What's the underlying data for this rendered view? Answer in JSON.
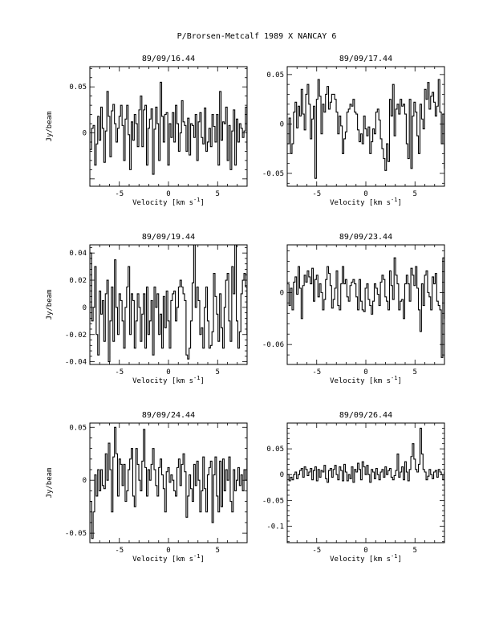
{
  "page_title": "P/Brorsen-Metcalf 1989 X   NANCAY      6",
  "chart_data": [
    {
      "type": "line",
      "title": "89/09/16.44",
      "xlabel": "Velocity [km s",
      "xlabel_sup": "-1",
      "xlabel_close": "]",
      "ylabel": "Jy/beam",
      "xlim": [
        -8,
        8
      ],
      "ylim": [
        -0.058,
        0.072
      ],
      "xticks": [
        -5,
        0,
        5
      ],
      "yticks": [
        0,
        0.05
      ],
      "ytick_labels": [
        "0",
        "0.05"
      ],
      "series": [
        {
          "x_start": -7.9,
          "x_step": 0.155,
          "values": [
            -0.018,
            0.005,
            0.008,
            -0.035,
            -0.012,
            0.018,
            -0.008,
            0.028,
            0.005,
            -0.032,
            0.002,
            0.045,
            0.018,
            -0.026,
            0.024,
            0.031,
            0.01,
            -0.01,
            0.005,
            0.018,
            0.03,
            0.008,
            -0.03,
            0.015,
            0.03,
            -0.002,
            -0.04,
            0.012,
            -0.008,
            0.02,
            0.01,
            -0.015,
            0.025,
            0.04,
            -0.015,
            0.025,
            0.03,
            -0.035,
            0.005,
            0.015,
            0.026,
            -0.045,
            0.004,
            0.028,
            0.01,
            -0.03,
            0.055,
            0.018,
            -0.01,
            0.02,
            0.022,
            -0.035,
            0.01,
            -0.005,
            0.022,
            -0.01,
            0.03,
            0.01,
            -0.02,
            0.0,
            0.035,
            0.012,
            0.008,
            -0.02,
            0.016,
            -0.024,
            0.01,
            0.008,
            -0.005,
            0.02,
            -0.03,
            0.012,
            0.022,
            -0.005,
            -0.012,
            0.027,
            -0.02,
            -0.01,
            0.005,
            -0.015,
            0.02,
            0.007,
            -0.01,
            0.02,
            -0.035,
            0.045,
            -0.008,
            0.012,
            0.01,
            0.028,
            -0.03,
            0.008,
            -0.04,
            0.002,
            0.025,
            -0.035,
            0.015,
            -0.01,
            0.01,
            0.005,
            -0.005,
            0.002,
            0.028,
            -0.018
          ]
        }
      ]
    },
    {
      "type": "line",
      "title": "89/09/17.44",
      "xlabel": "Velocity [km s",
      "xlabel_sup": "-1",
      "xlabel_close": "]",
      "ylabel": "",
      "xlim": [
        -8,
        8
      ],
      "ylim": [
        -0.063,
        0.058
      ],
      "xticks": [
        -5,
        0,
        5
      ],
      "yticks": [
        -0.05,
        0,
        0.05
      ],
      "ytick_labels": [
        "-0.05",
        "0",
        "0.05"
      ],
      "series": [
        {
          "x_start": -7.9,
          "x_step": 0.155,
          "values": [
            -0.02,
            0.006,
            -0.03,
            -0.02,
            0.012,
            0.022,
            -0.004,
            0.018,
            0.008,
            0.035,
            0.01,
            -0.006,
            0.03,
            0.04,
            0.02,
            -0.015,
            0.005,
            0.018,
            -0.055,
            0.025,
            0.045,
            0.028,
            -0.01,
            0.02,
            0.012,
            0.03,
            0.038,
            0.015,
            0.022,
            0.03,
            0.03,
            0.025,
            0.012,
            -0.01,
            0.008,
            -0.002,
            -0.03,
            -0.015,
            -0.008,
            0.012,
            0.015,
            0.02,
            0.018,
            0.025,
            0.012,
            0.01,
            -0.006,
            -0.018,
            -0.01,
            -0.02,
            0.008,
            -0.005,
            -0.012,
            -0.003,
            -0.03,
            -0.018,
            -0.005,
            -0.01,
            0.012,
            0.015,
            0.004,
            -0.015,
            -0.025,
            -0.035,
            -0.047,
            -0.02,
            -0.038,
            0.025,
            0.008,
            0.04,
            -0.012,
            0.015,
            0.02,
            0.01,
            0.025,
            0.018,
            0.02,
            0.01,
            -0.02,
            -0.035,
            0.025,
            -0.045,
            0.008,
            0.022,
            0.012,
            -0.012,
            -0.03,
            0.02,
            0.005,
            -0.005,
            0.035,
            0.025,
            0.042,
            0.015,
            0.028,
            0.032,
            0.022,
            0.008,
            0.018,
            0.045,
            0.012,
            -0.02,
            0.01,
            -0.045
          ]
        }
      ]
    },
    {
      "type": "line",
      "title": "89/09/19.44",
      "xlabel": "Velocity [km s",
      "xlabel_sup": "-1",
      "xlabel_close": "]",
      "ylabel": "Jy/beam",
      "xlim": [
        -8,
        8
      ],
      "ylim": [
        -0.042,
        0.046
      ],
      "xticks": [
        -5,
        0,
        5
      ],
      "yticks": [
        -0.04,
        -0.02,
        0,
        0.02,
        0.04
      ],
      "ytick_labels": [
        "-0.04",
        "-0.02",
        "0",
        "0.02",
        "0.04"
      ],
      "series": [
        {
          "x_start": -7.9,
          "x_step": 0.155,
          "values": [
            0.04,
            -0.01,
            0.0,
            0.03,
            -0.02,
            -0.035,
            0.012,
            -0.005,
            0.005,
            -0.025,
            0.01,
            0.02,
            -0.04,
            -0.01,
            0.015,
            -0.025,
            0.035,
            0.0,
            -0.02,
            0.01,
            0.005,
            -0.01,
            -0.03,
            0.0,
            0.015,
            0.03,
            -0.02,
            0.01,
            0.005,
            -0.03,
            -0.01,
            0.01,
            0.0,
            -0.025,
            -0.005,
            0.01,
            -0.03,
            0.015,
            -0.02,
            -0.01,
            0.005,
            -0.035,
            0.015,
            0.0,
            0.01,
            -0.02,
            -0.005,
            -0.03,
            0.008,
            -0.015,
            0.012,
            -0.01,
            -0.03,
            0.005,
            0.01,
            0.012,
            -0.01,
            0.0,
            0.015,
            0.02,
            0.015,
            0.01,
            0.005,
            -0.035,
            -0.038,
            -0.03,
            -0.01,
            0.018,
            0.046,
            0.0,
            0.015,
            0.005,
            -0.02,
            -0.015,
            -0.03,
            0.0,
            0.015,
            -0.01,
            -0.03,
            -0.028,
            -0.018,
            0.025,
            0.008,
            -0.005,
            -0.025,
            0.01,
            -0.015,
            -0.03,
            0.0,
            0.02,
            0.025,
            -0.01,
            -0.025,
            0.03,
            0.01,
            0.047,
            -0.01,
            -0.03,
            -0.018,
            0.01,
            0.02,
            0.025,
            0.015,
            -0.02
          ]
        }
      ]
    },
    {
      "type": "line",
      "title": "89/09/23.44",
      "xlabel": "Velocity [km s",
      "xlabel_sup": "-1",
      "xlabel_close": "]",
      "ylabel": "",
      "xlim": [
        -8,
        8
      ],
      "ylim": [
        -0.083,
        0.055
      ],
      "xticks": [
        -5,
        0,
        5
      ],
      "yticks": [
        -0.06,
        0
      ],
      "ytick_labels": [
        "-0.06",
        "0"
      ],
      "series": [
        {
          "x_start": -7.9,
          "x_step": 0.155,
          "values": [
            0.01,
            -0.015,
            0.005,
            -0.02,
            0.012,
            0.018,
            -0.002,
            0.03,
            0.005,
            -0.03,
            0.008,
            0.02,
            0.012,
            0.025,
            0.018,
            0.01,
            0.028,
            -0.01,
            0.015,
            0.02,
            -0.005,
            0.01,
            0.0,
            -0.02,
            -0.008,
            0.015,
            0.03,
            0.022,
            0.008,
            -0.018,
            -0.008,
            0.005,
            0.025,
            -0.015,
            -0.02,
            0.01,
            0.03,
            0.01,
            0.015,
            -0.005,
            -0.01,
            0.008,
            0.012,
            0.015,
            0.01,
            -0.005,
            -0.02,
            0.015,
            -0.01,
            -0.02,
            -0.022,
            0.005,
            0.01,
            -0.008,
            -0.015,
            -0.025,
            -0.01,
            0.01,
            0.005,
            -0.002,
            -0.015,
            0.012,
            0.02,
            0.015,
            -0.005,
            -0.01,
            -0.02,
            0.025,
            0.008,
            -0.008,
            0.04,
            0.02,
            0.01,
            -0.02,
            -0.01,
            -0.008,
            -0.03,
            0.01,
            0.02,
            0.01,
            -0.01,
            0.028,
            0.02,
            0.008,
            0.03,
            0.005,
            -0.02,
            -0.045,
            0.01,
            -0.015,
            0.02,
            0.025,
            0.0,
            -0.005,
            -0.02,
            0.018,
            0.01,
            0.022,
            -0.01,
            -0.015,
            -0.02,
            -0.075,
            0.04,
            -0.03
          ]
        }
      ]
    },
    {
      "type": "line",
      "title": "89/09/24.44",
      "xlabel": "Velocity [km s",
      "xlabel_sup": "-1",
      "xlabel_close": "]",
      "ylabel": "Jy/beam",
      "xlim": [
        -8,
        8
      ],
      "ylim": [
        -0.059,
        0.054
      ],
      "xticks": [
        -5,
        0,
        5
      ],
      "yticks": [
        -0.05,
        0,
        0.05
      ],
      "ytick_labels": [
        "-0.05",
        "0",
        "0.05"
      ],
      "series": [
        {
          "x_start": -7.9,
          "x_step": 0.155,
          "values": [
            -0.02,
            -0.055,
            -0.03,
            0.005,
            -0.015,
            0.01,
            -0.01,
            0.01,
            -0.005,
            -0.008,
            0.025,
            0.0,
            0.035,
            0.01,
            -0.03,
            0.022,
            0.05,
            0.025,
            -0.015,
            0.02,
            0.015,
            -0.005,
            0.015,
            -0.02,
            -0.01,
            0.01,
            0.02,
            0.03,
            -0.015,
            -0.025,
            0.03,
            0.015,
            0.0,
            -0.01,
            0.018,
            0.048,
            0.012,
            -0.015,
            0.01,
            0.0,
            0.015,
            0.03,
            0.01,
            -0.005,
            -0.015,
            0.012,
            0.02,
            0.005,
            -0.008,
            -0.03,
            0.008,
            0.012,
            -0.002,
            0.005,
            0.0,
            -0.01,
            -0.015,
            0.012,
            0.02,
            -0.005,
            0.015,
            0.025,
            0.008,
            -0.035,
            -0.015,
            0.005,
            -0.008,
            -0.02,
            0.015,
            -0.005,
            0.018,
            0.0,
            -0.03,
            -0.01,
            0.022,
            -0.008,
            -0.03,
            0.005,
            0.012,
            0.018,
            -0.04,
            0.005,
            0.022,
            -0.015,
            -0.03,
            0.018,
            -0.025,
            0.02,
            -0.01,
            0.01,
            0.0,
            0.022,
            -0.02,
            -0.03,
            0.01,
            -0.01,
            0.0,
            0.012,
            -0.005,
            0.005,
            -0.01,
            0.01,
            0.0,
            0.02
          ]
        }
      ]
    },
    {
      "type": "line",
      "title": "89/09/26.44",
      "xlabel": "Velocity [km s",
      "xlabel_sup": "-1",
      "xlabel_close": "]",
      "ylabel": "",
      "xlim": [
        -8,
        8
      ],
      "ylim": [
        -0.132,
        0.1
      ],
      "xticks": [
        -5,
        0,
        5
      ],
      "yticks": [
        -0.1,
        -0.05,
        0,
        0.05
      ],
      "ytick_labels": [
        "-0.1",
        "-0.05",
        "0",
        "0.05"
      ],
      "series": [
        {
          "x_start": -7.9,
          "x_step": 0.155,
          "values": [
            0.0,
            -0.012,
            -0.005,
            -0.01,
            0.0,
            0.005,
            -0.008,
            0.0,
            0.008,
            0.012,
            -0.005,
            0.015,
            0.01,
            -0.002,
            0.005,
            0.012,
            -0.01,
            0.008,
            0.015,
            -0.012,
            0.01,
            -0.005,
            0.008,
            0.005,
            0.018,
            -0.008,
            -0.015,
            0.008,
            0.012,
            -0.005,
            0.01,
            0.018,
            0.0,
            -0.01,
            0.015,
            0.008,
            -0.012,
            0.02,
            0.005,
            -0.012,
            0.0,
            -0.008,
            0.015,
            -0.015,
            0.01,
            0.005,
            0.022,
            0.01,
            -0.01,
            0.025,
            0.015,
            0.0,
            0.018,
            0.0,
            -0.015,
            0.01,
            0.005,
            -0.008,
            0.012,
            0.0,
            -0.01,
            0.005,
            0.01,
            -0.005,
            0.015,
            0.0,
            0.008,
            0.012,
            -0.005,
            -0.01,
            -0.002,
            0.008,
            0.04,
            -0.005,
            0.005,
            0.015,
            -0.01,
            0.025,
            0.005,
            -0.012,
            0.01,
            0.035,
            0.06,
            0.03,
            0.01,
            0.005,
            0.02,
            0.09,
            0.04,
            0.01,
            0.005,
            -0.01,
            -0.003,
            0.01,
            0.0,
            -0.008,
            0.005,
            0.008,
            -0.005,
            0.01,
            0.005,
            0.0,
            -0.01,
            0.005
          ]
        }
      ]
    }
  ]
}
